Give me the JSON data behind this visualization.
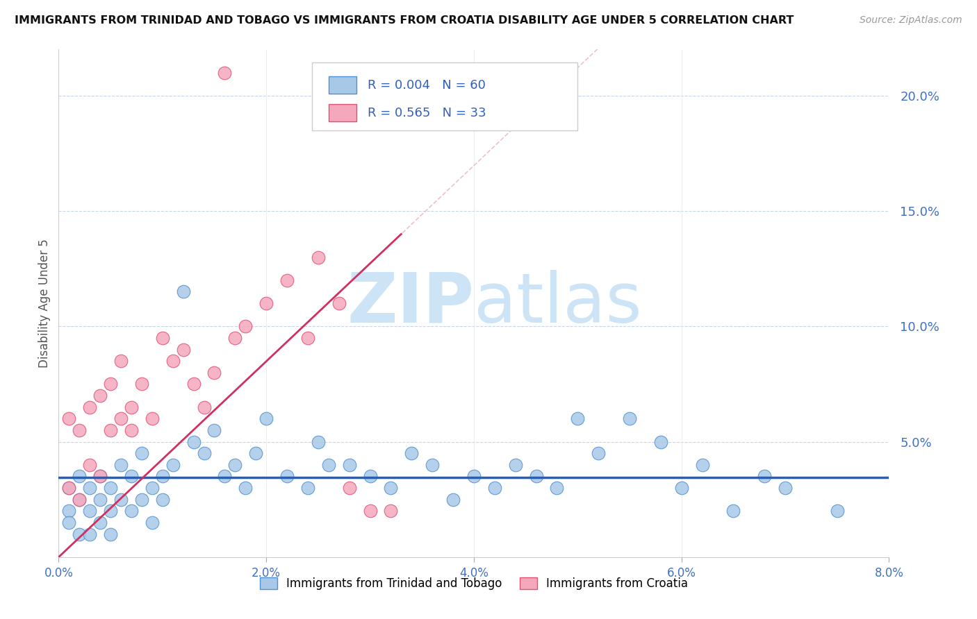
{
  "title": "IMMIGRANTS FROM TRINIDAD AND TOBAGO VS IMMIGRANTS FROM CROATIA DISABILITY AGE UNDER 5 CORRELATION CHART",
  "source": "Source: ZipAtlas.com",
  "ylabel": "Disability Age Under 5",
  "legend_tt": "Immigrants from Trinidad and Tobago",
  "legend_cr": "Immigrants from Croatia",
  "R_tt": 0.004,
  "N_tt": 60,
  "R_cr": 0.565,
  "N_cr": 33,
  "xlim": [
    0.0,
    0.08
  ],
  "ylim": [
    0.0,
    0.22
  ],
  "xtick_labels": [
    "0.0%",
    "2.0%",
    "4.0%",
    "6.0%",
    "8.0%"
  ],
  "ytick_labels_right": [
    "5.0%",
    "10.0%",
    "15.0%",
    "20.0%"
  ],
  "color_tt": "#a8c8e8",
  "color_cr": "#f5a8bc",
  "color_tt_edge": "#5090d0",
  "color_cr_edge": "#e05070",
  "color_tt_line": "#2060c0",
  "color_cr_line": "#d03060",
  "color_diag": "#e8b0c0",
  "watermark_zip": "ZIP",
  "watermark_atlas": "atlas",
  "watermark_color": "#cce4f5"
}
